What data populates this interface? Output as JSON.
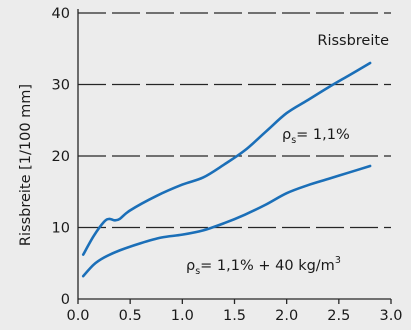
{
  "chart_data": {
    "type": "line",
    "title": "",
    "xlabel": "",
    "ylabel": "Rissbreite [1/100 mm]",
    "xlim": [
      0.0,
      3.0
    ],
    "ylim": [
      0,
      40
    ],
    "x_ticks": [
      "0.0",
      "0.5",
      "1.0",
      "1.5",
      "2.0",
      "2.5",
      "3.0"
    ],
    "y_ticks": [
      "0",
      "10",
      "20",
      "30",
      "40"
    ],
    "grid": "horizontal dashed",
    "line_color": "#1b6fb8",
    "legend_title": "Rissbreite",
    "annotations": [
      {
        "rho": "ρ",
        "sub": "s",
        "text": "= 1,1%",
        "series": 0
      },
      {
        "rho": "ρ",
        "sub": "s",
        "text": "= 1,1% + 40 kg/m",
        "sup": "3",
        "series": 1
      }
    ],
    "series": [
      {
        "values": [
          [
            0.05,
            6.2
          ],
          [
            0.15,
            8.8
          ],
          [
            0.25,
            10.8
          ],
          [
            0.3,
            11.2
          ],
          [
            0.35,
            11.0
          ],
          [
            0.4,
            11.2
          ],
          [
            0.5,
            12.4
          ],
          [
            0.75,
            14.4
          ],
          [
            1.0,
            16.0
          ],
          [
            1.2,
            17.0
          ],
          [
            1.4,
            18.8
          ],
          [
            1.6,
            20.8
          ],
          [
            1.8,
            23.4
          ],
          [
            2.0,
            26.0
          ],
          [
            2.2,
            27.8
          ],
          [
            2.4,
            29.6
          ],
          [
            2.6,
            31.3
          ],
          [
            2.8,
            33.0
          ]
        ]
      },
      {
        "values": [
          [
            0.05,
            3.2
          ],
          [
            0.15,
            4.8
          ],
          [
            0.25,
            5.8
          ],
          [
            0.4,
            6.8
          ],
          [
            0.6,
            7.8
          ],
          [
            0.8,
            8.6
          ],
          [
            1.0,
            9.0
          ],
          [
            1.2,
            9.6
          ],
          [
            1.4,
            10.6
          ],
          [
            1.6,
            11.8
          ],
          [
            1.8,
            13.2
          ],
          [
            2.0,
            14.8
          ],
          [
            2.2,
            15.9
          ],
          [
            2.4,
            16.8
          ],
          [
            2.6,
            17.7
          ],
          [
            2.8,
            18.6
          ]
        ]
      }
    ]
  }
}
